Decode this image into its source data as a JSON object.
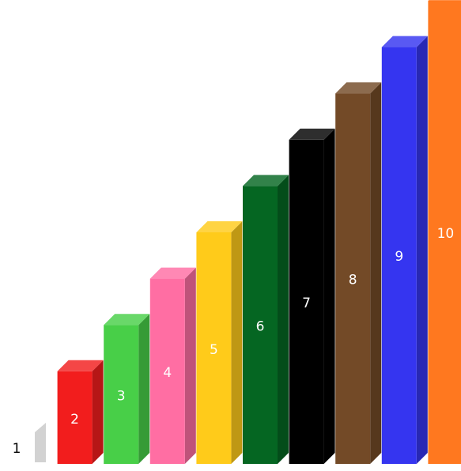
{
  "rods": [
    {
      "value": 1,
      "label": "1",
      "color": "#e6e6e6"
    },
    {
      "value": 2,
      "label": "2",
      "color": "#f21d1d"
    },
    {
      "value": 3,
      "label": "3",
      "color": "#48cf48"
    },
    {
      "value": 4,
      "label": "4",
      "color": "#ff6ea3"
    },
    {
      "value": 5,
      "label": "5",
      "color": "#ffcb1a"
    },
    {
      "value": 6,
      "label": "6",
      "color": "#056622"
    },
    {
      "value": 7,
      "label": "7",
      "color": "#000000"
    },
    {
      "value": 8,
      "label": "8",
      "color": "#734a27"
    },
    {
      "value": 9,
      "label": "9",
      "color": "#3535f0"
    },
    {
      "value": 10,
      "label": "10",
      "color": "#ff781f"
    }
  ]
}
